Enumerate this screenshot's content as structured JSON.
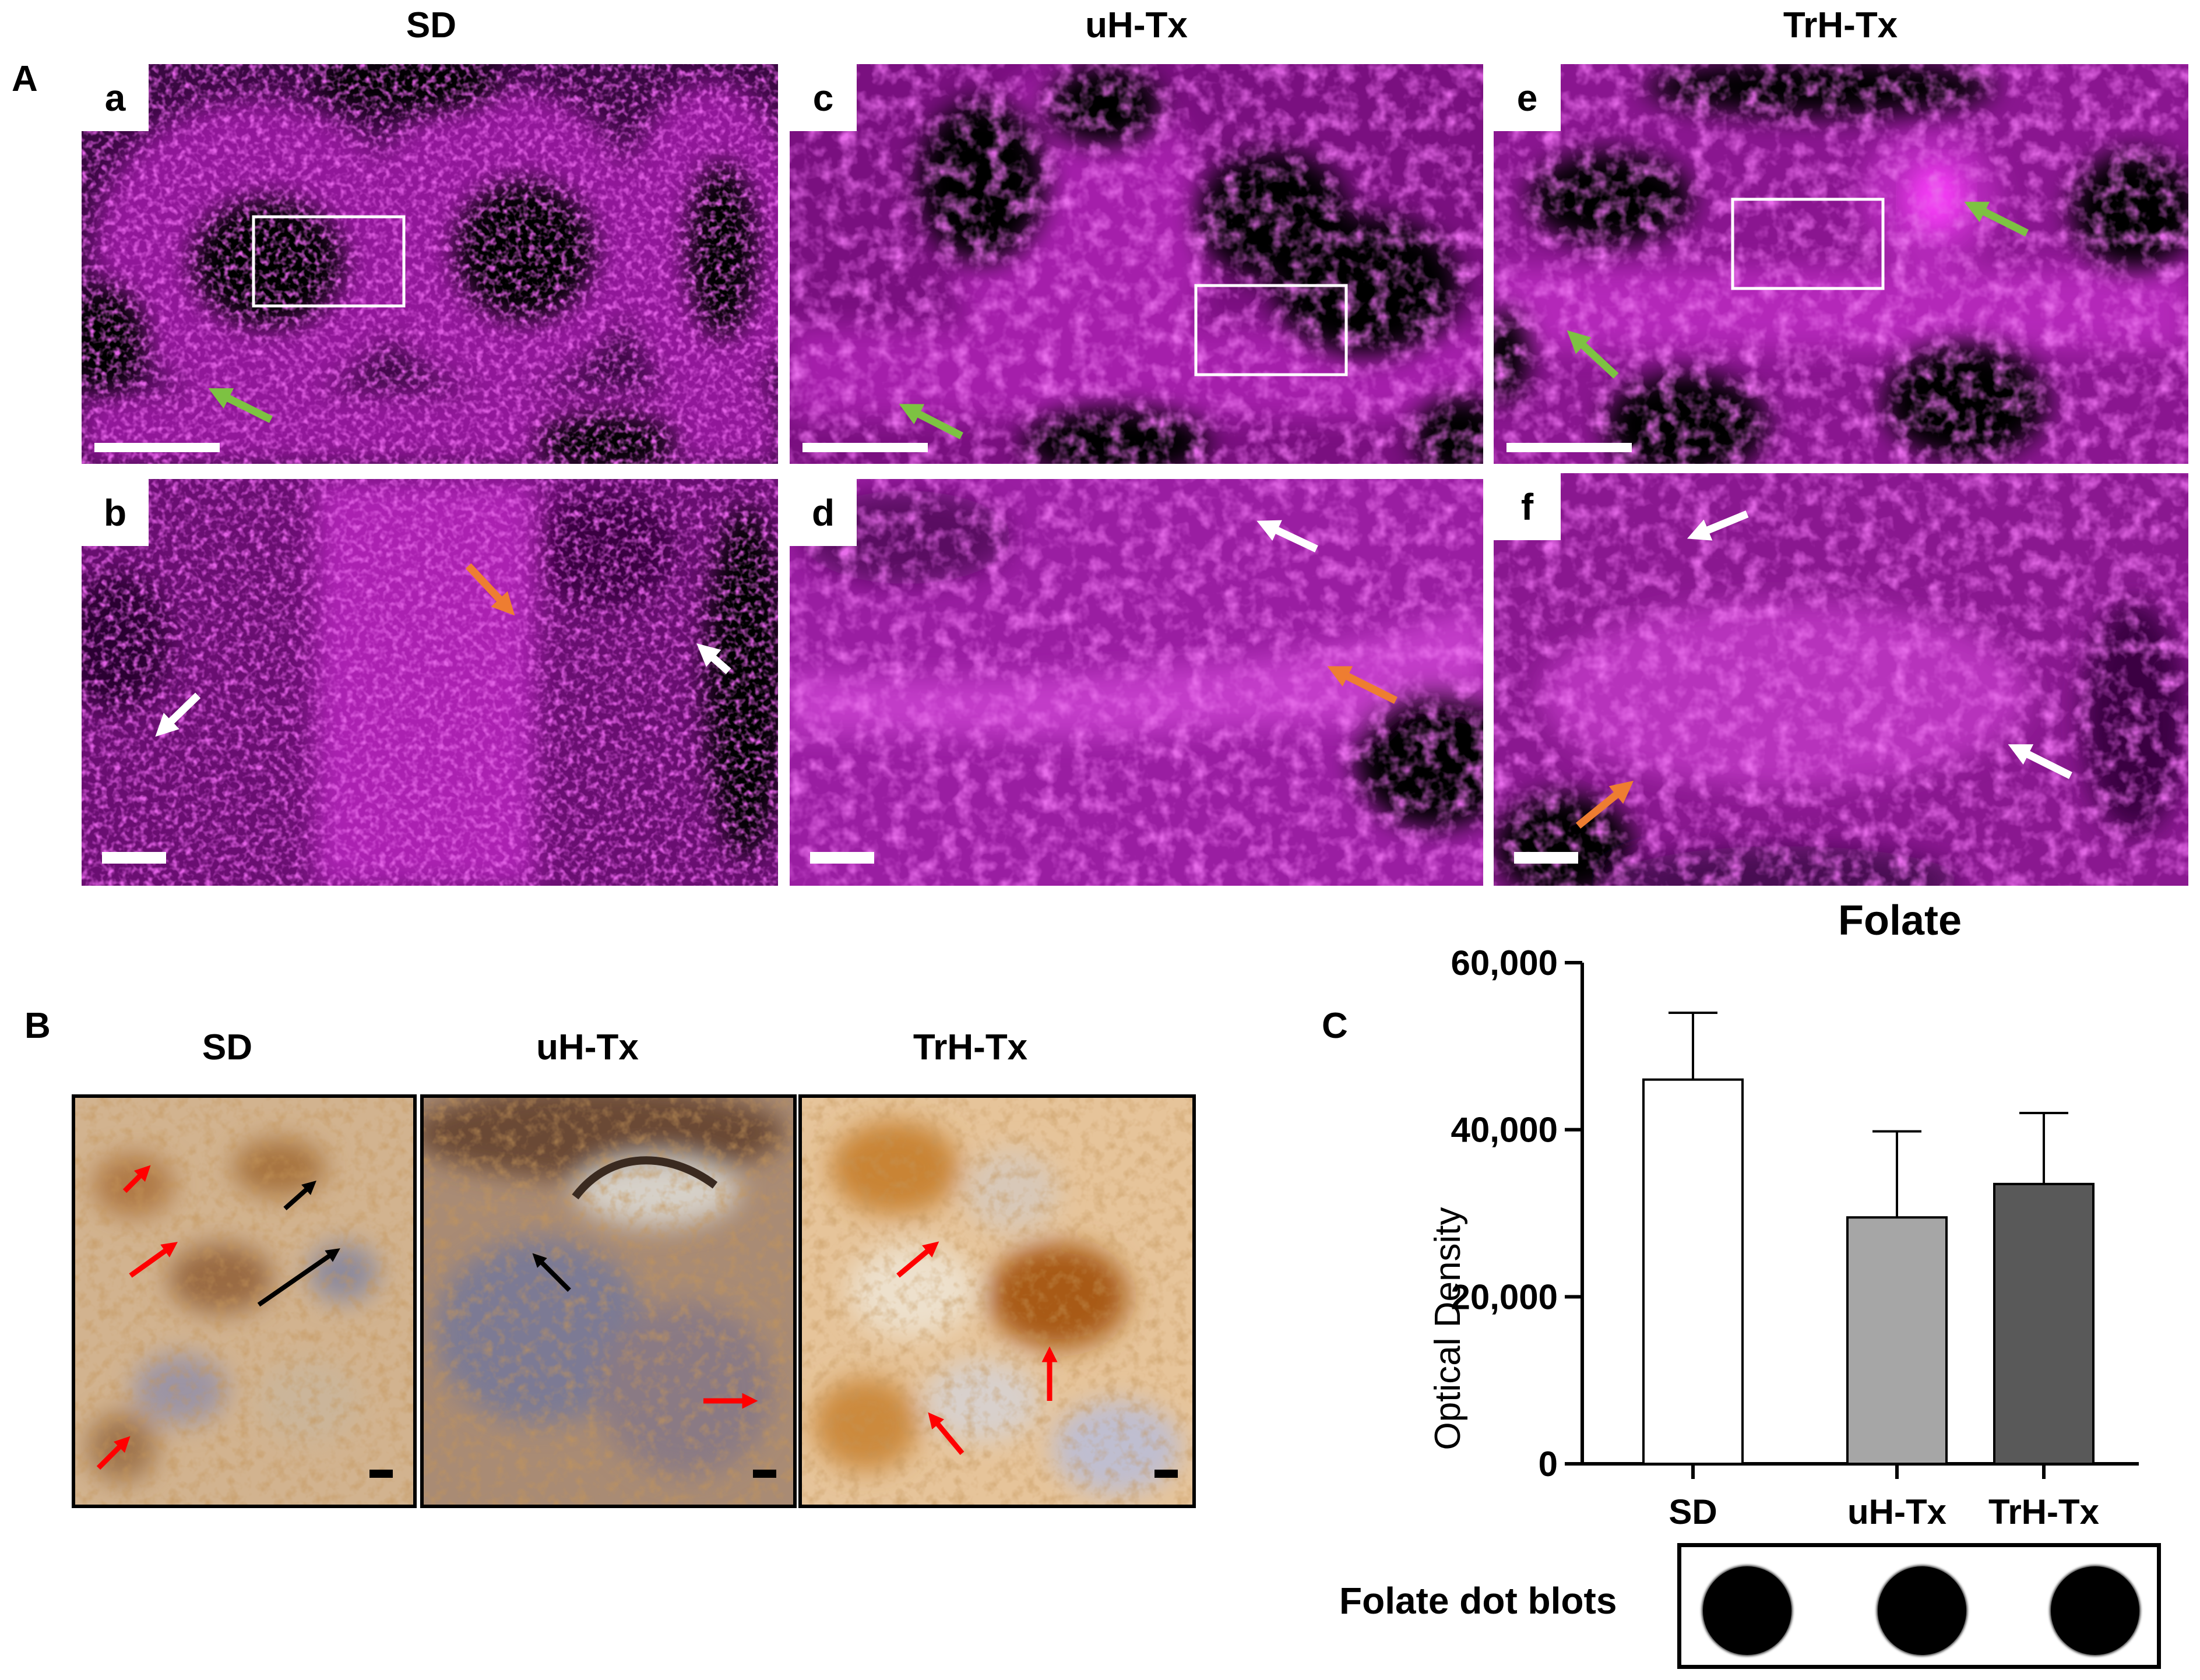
{
  "panel_a": {
    "letter": "A",
    "columns": [
      "SD",
      "uH-Tx",
      "TrH-Tx"
    ],
    "subpanels": [
      "a",
      "c",
      "e",
      "b",
      "d",
      "f"
    ]
  },
  "panel_b": {
    "letter": "B",
    "columns": [
      "SD",
      "uH-Tx",
      "TrH-Tx"
    ]
  },
  "panel_c": {
    "letter": "C",
    "dot_blot_label": "Folate dot blots"
  },
  "colors": {
    "fluorescence": "#c21fc8",
    "arrow_green": "#7dc242",
    "arrow_orange": "#ee7d31",
    "arrow_white": "#ffffff",
    "arrow_red": "#ff0000",
    "arrow_black": "#000000",
    "bar_sd": "#ffffff",
    "bar_uh": "#a6a6a6",
    "bar_trh": "#595959"
  },
  "chart_data": {
    "type": "bar",
    "title": "Folate",
    "ylabel": "Optical Density",
    "xlabel": "",
    "categories": [
      "SD",
      "uH-Tx",
      "TrH-Tx"
    ],
    "values": [
      46000,
      29500,
      33500
    ],
    "error_upper": [
      54000,
      39800,
      42000
    ],
    "ylim": [
      0,
      60000
    ],
    "yticks": [
      0,
      20000,
      40000,
      60000
    ],
    "ytick_labels": [
      "0",
      "20,000",
      "40,000",
      "60,000"
    ],
    "grid": false
  }
}
